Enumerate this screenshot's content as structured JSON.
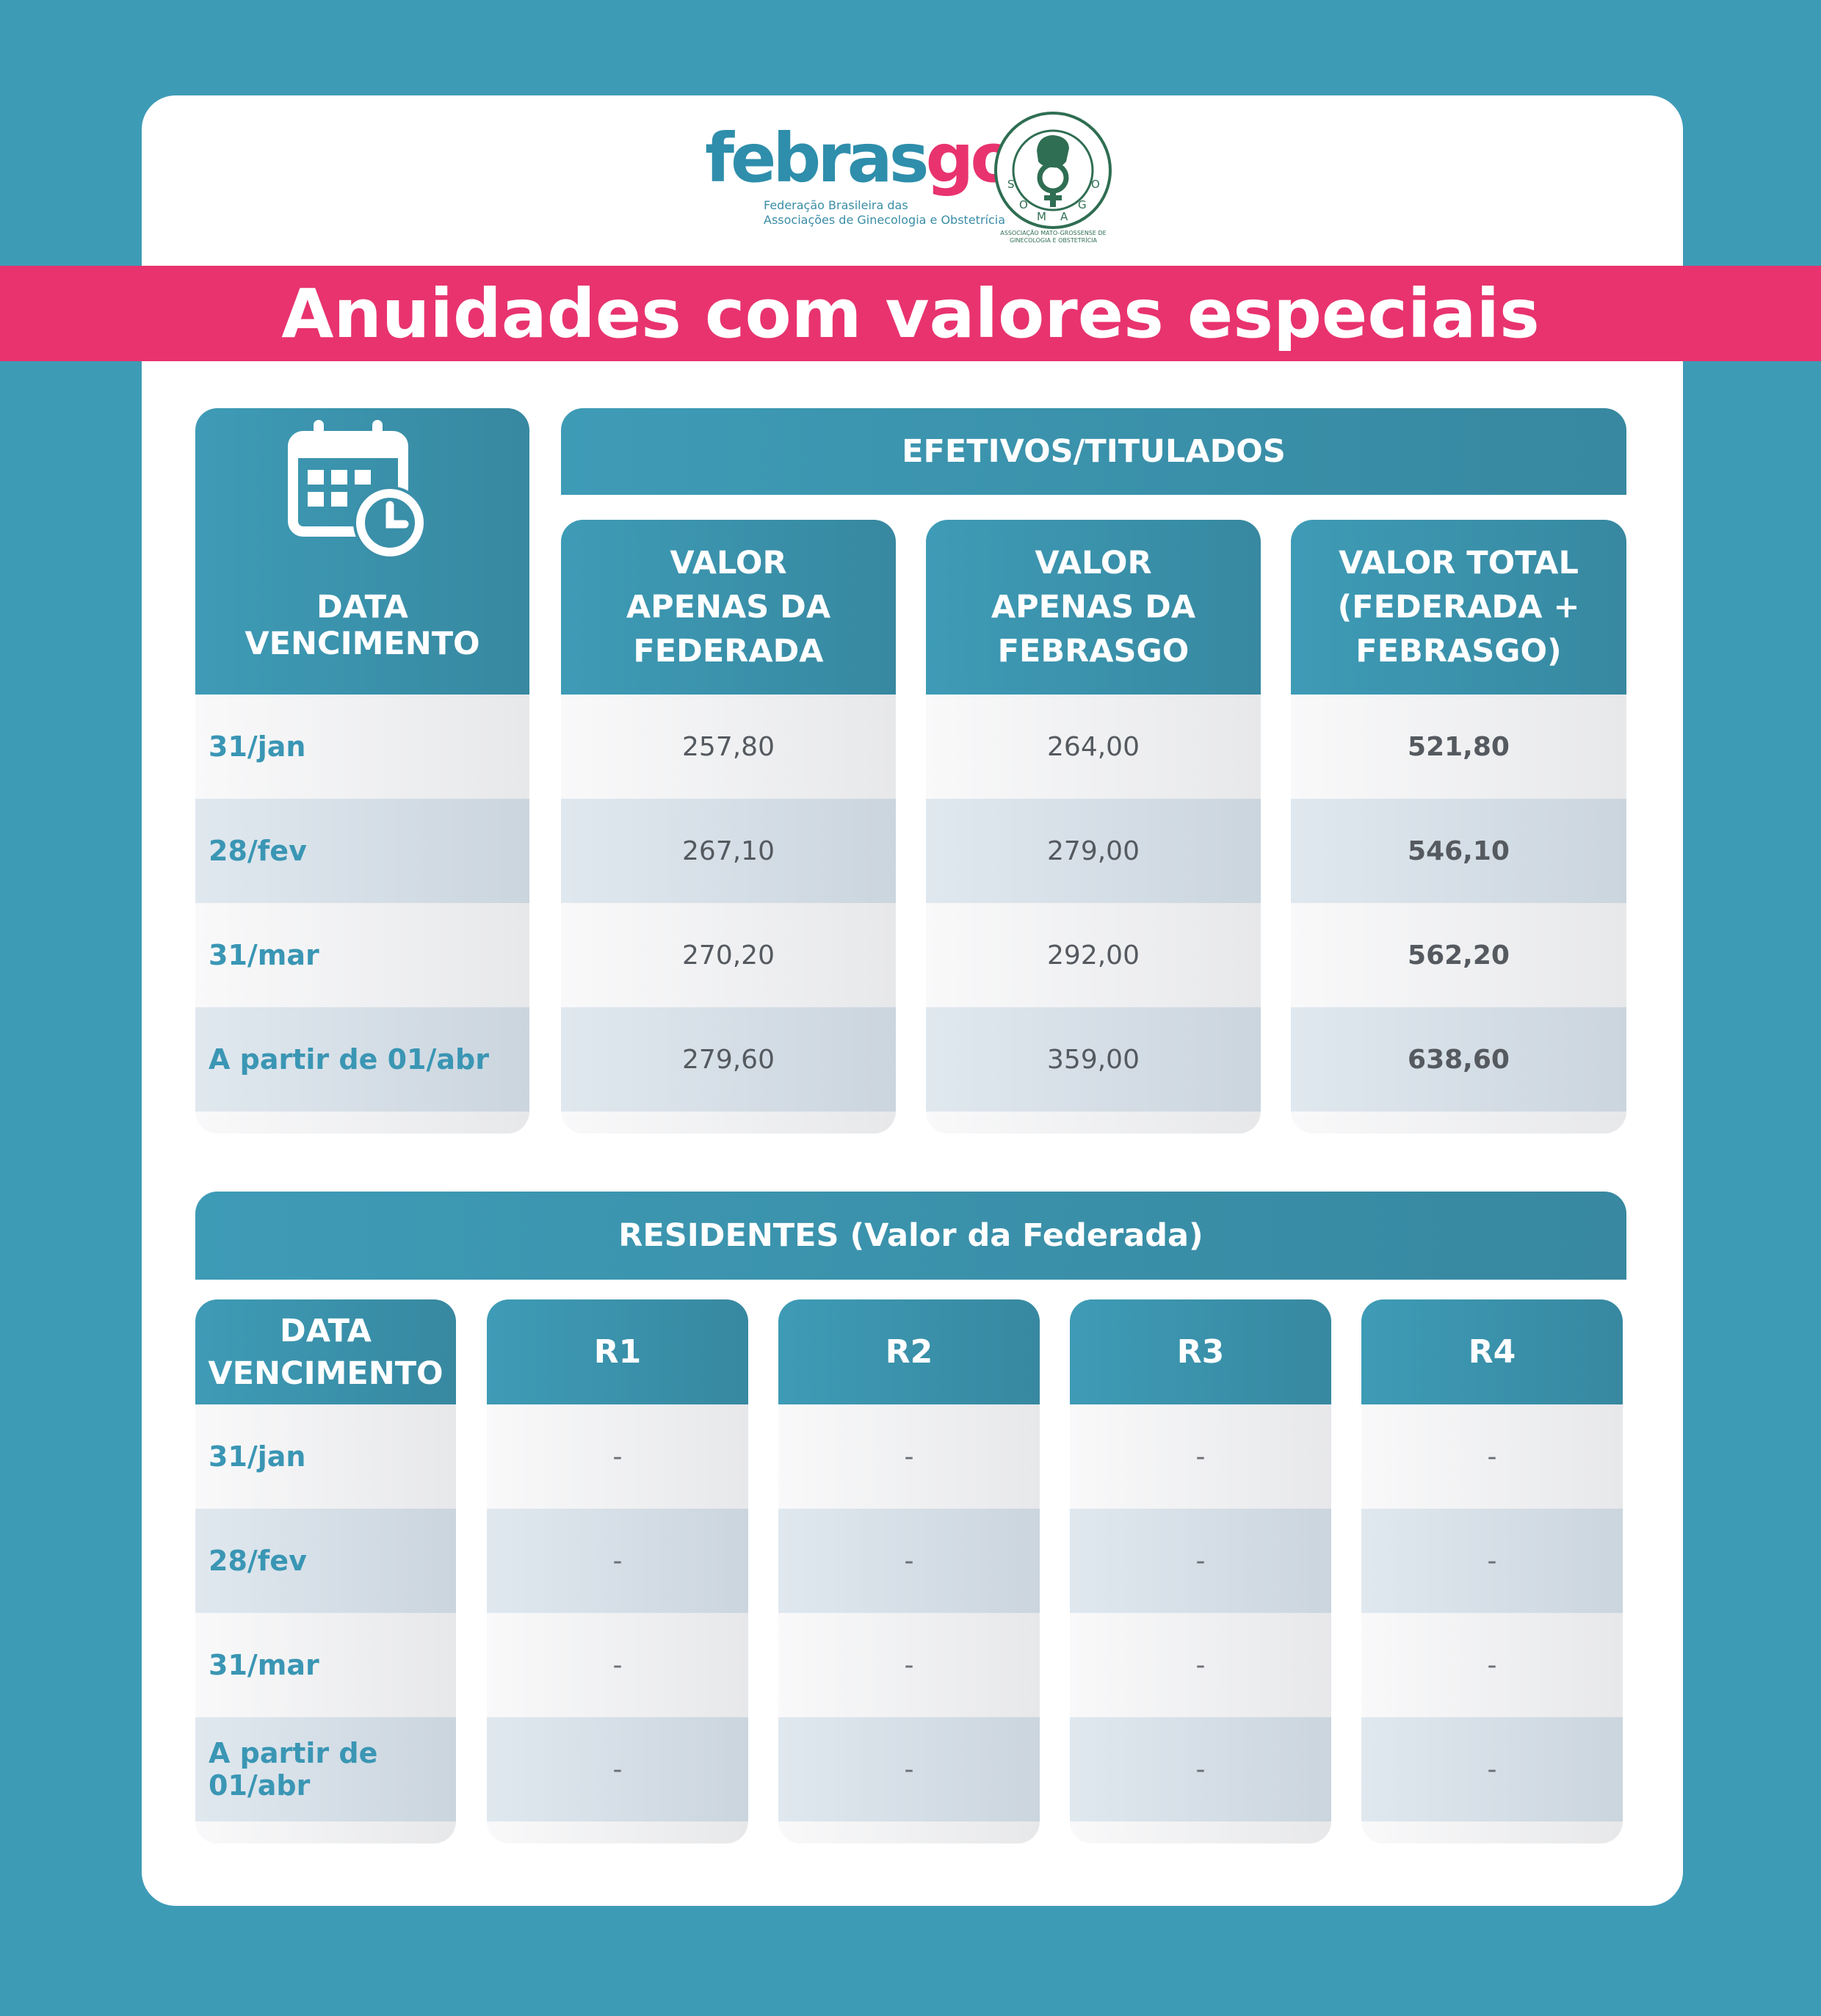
{
  "logos": {
    "febrasgo_wordmark_a": "febras",
    "febrasgo_wordmark_b": "go",
    "febrasgo_subtitle_1": "Federação Brasileira das",
    "febrasgo_subtitle_2": "Associações de Ginecologia e Obstetrícia",
    "somago_ring_text": "SOMAGO",
    "somago_caption_1": "ASSOCIAÇÃO MATO-GROSSENSE DE",
    "somago_caption_2": "GINECOLOGIA E OBSTETRÍCIA"
  },
  "title": "Anuidades com valores especiais",
  "efetivos": {
    "group_header": "EFETIVOS/TITULADOS",
    "date_header": "DATA VENCIMENTO",
    "calendar_icon": "calendar-clock-icon",
    "col_headers": [
      [
        "VALOR",
        "APENAS DA",
        "FEDERADA"
      ],
      [
        "VALOR",
        "APENAS DA",
        "FEBRASGO"
      ],
      [
        "VALOR TOTAL",
        "(FEDERADA +",
        "FEBRASGO)"
      ]
    ],
    "rows": [
      {
        "date": "31/jan",
        "federada": "257,80",
        "febrasgo": "264,00",
        "total": "521,80"
      },
      {
        "date": "28/fev",
        "federada": "267,10",
        "febrasgo": "279,00",
        "total": "546,10"
      },
      {
        "date": "31/mar",
        "federada": "270,20",
        "febrasgo": "292,00",
        "total": "562,20"
      },
      {
        "date": "A partir de 01/abr",
        "federada": "279,60",
        "febrasgo": "359,00",
        "total": "638,60"
      }
    ]
  },
  "residentes": {
    "group_header": "RESIDENTES (Valor da Federada)",
    "date_header": [
      "DATA",
      "VENCIMENTO"
    ],
    "col_headers": [
      "R1",
      "R2",
      "R3",
      "R4"
    ],
    "rows": [
      {
        "date": "31/jan",
        "values": [
          "-",
          "-",
          "-",
          "-"
        ]
      },
      {
        "date": "28/fev",
        "values": [
          "-",
          "-",
          "-",
          "-"
        ]
      },
      {
        "date": "31/mar",
        "values": [
          "-",
          "-",
          "-",
          "-"
        ]
      },
      {
        "date": "A partir de 01/abr",
        "values": [
          "-",
          "-",
          "-",
          "-"
        ]
      }
    ]
  },
  "colors": {
    "background": "#3e9bb6",
    "accent_pink": "#e8336f",
    "header_teal": "#3788a0",
    "date_text": "#3a96b4"
  }
}
